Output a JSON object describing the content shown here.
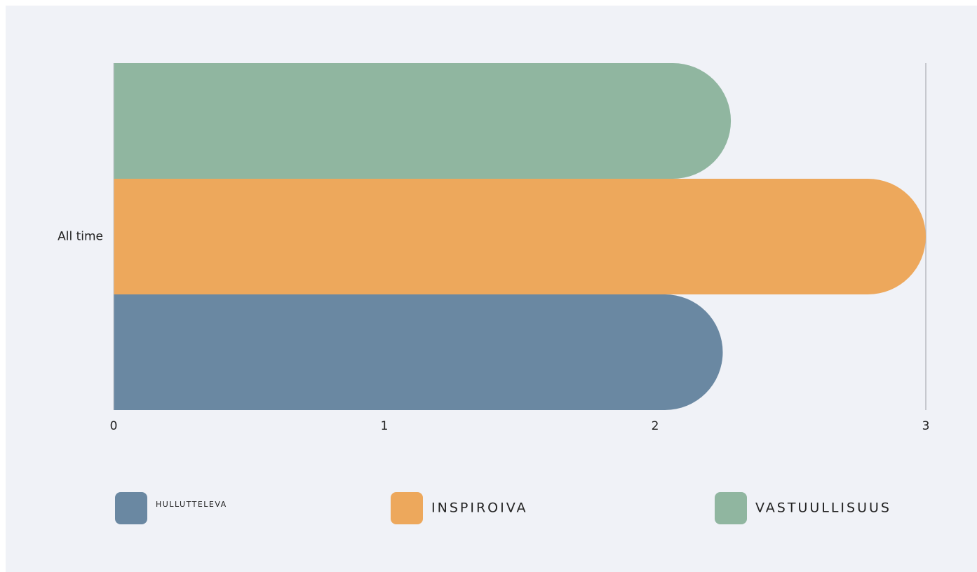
{
  "chart_data": {
    "type": "bar",
    "orientation": "horizontal",
    "categories": [
      "All time"
    ],
    "series": [
      {
        "name": "HULLUTTELEVA",
        "color": "#6a88a2",
        "values": [
          2.25
        ]
      },
      {
        "name": "INSPIROIVA",
        "color": "#eda85c",
        "values": [
          3
        ]
      },
      {
        "name": "VASTUULLISUUS",
        "color": "#90b6a0",
        "values": [
          2.28
        ]
      }
    ],
    "xlim": [
      0,
      3
    ],
    "xticks": [
      0,
      1,
      2,
      3
    ]
  }
}
